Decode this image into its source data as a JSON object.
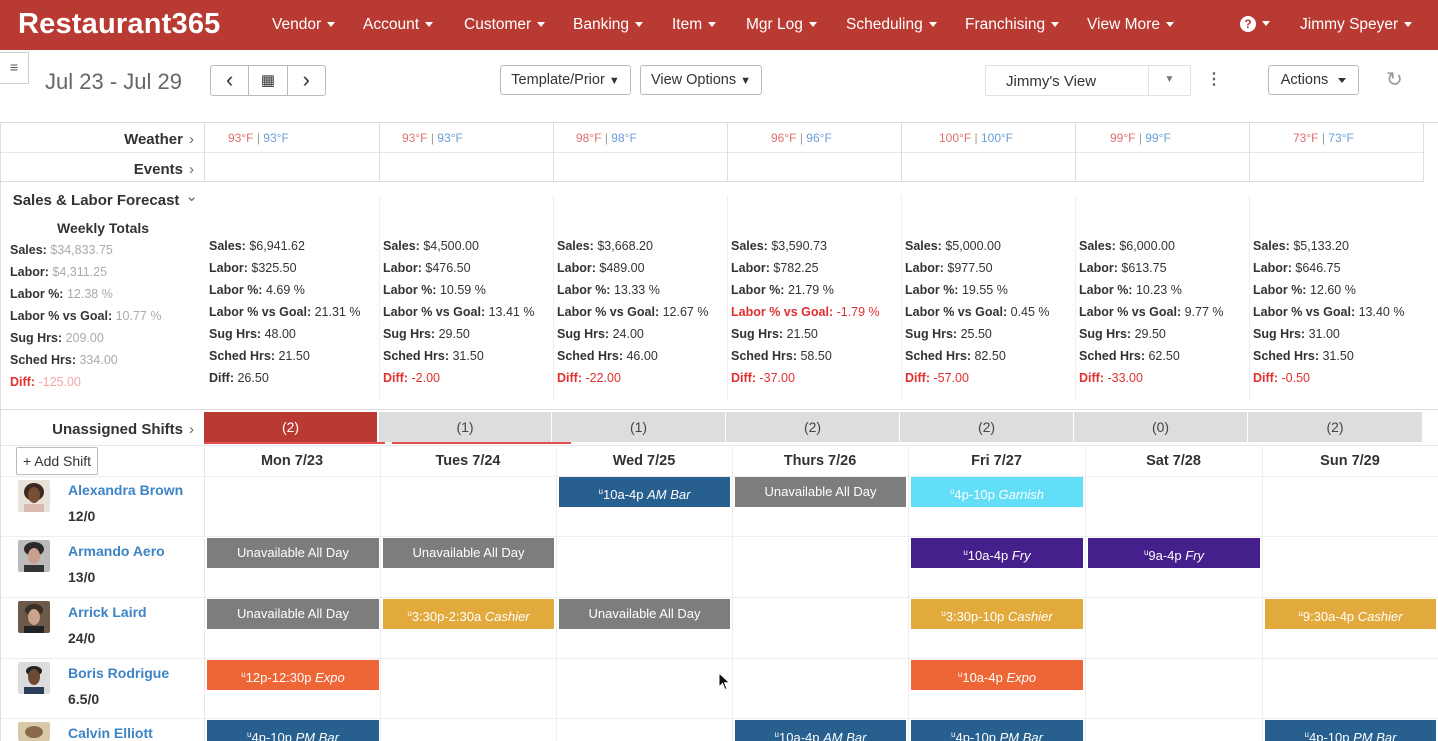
{
  "nav": {
    "brand": "Restaurant365",
    "items": [
      "Vendor",
      "Account",
      "Customer",
      "Banking",
      "Item",
      "Mgr Log",
      "Scheduling",
      "Franchising",
      "View More"
    ],
    "help_glyph": "?",
    "user": "Jimmy Speyer"
  },
  "toolbar": {
    "menu_glyph": "≡",
    "date_range": "Jul 23 - Jul 29",
    "prev_glyph": "‹",
    "calendar_glyph": "▦",
    "next_glyph": "›",
    "template_label": "Template/Prior",
    "view_options_label": "View Options",
    "view_select_value": "Jimmy's View",
    "kebab_glyph": "⋮",
    "actions_label": "Actions",
    "refresh_glyph": "↻"
  },
  "labels": {
    "weather": "Weather",
    "events": "Events",
    "forecast": "Sales & Labor Forecast",
    "unassigned": "Unassigned Shifts",
    "chevron_right": "›",
    "chevron_down": "⌄"
  },
  "weather": [
    {
      "hi": "93°F",
      "lo": "93°F"
    },
    {
      "hi": "93°F",
      "lo": "93°F"
    },
    {
      "hi": "98°F",
      "lo": "98°F"
    },
    {
      "hi": "96°F",
      "lo": "96°F"
    },
    {
      "hi": "100°F",
      "lo": "100°F"
    },
    {
      "hi": "99°F",
      "lo": "99°F"
    },
    {
      "hi": "73°F",
      "lo": "73°F"
    }
  ],
  "weekly_totals": {
    "title": "Weekly Totals",
    "rows": [
      {
        "label": "Sales:",
        "value": "$34,833.75"
      },
      {
        "label": "Labor:",
        "value": "$4,311.25"
      },
      {
        "label": "Labor %:",
        "value": "12.38 %"
      },
      {
        "label": "Labor % vs Goal:",
        "value": "10.77 %"
      },
      {
        "label": "Sug Hrs:",
        "value": "209.00"
      },
      {
        "label": "Sched Hrs:",
        "value": "334.00"
      },
      {
        "label": "Diff:",
        "value": "-125.00"
      }
    ]
  },
  "stat_labels": [
    "Sales:",
    "Labor:",
    "Labor %:",
    "Labor % vs Goal:",
    "Sug Hrs:",
    "Sched Hrs:",
    "Diff:"
  ],
  "days": [
    {
      "header": "Mon 7/23",
      "unassigned": "(2)",
      "stats": [
        "$6,941.62",
        "$325.50",
        "4.69 %",
        "21.31 %",
        "48.00",
        "21.50",
        "26.50"
      ]
    },
    {
      "header": "Tues 7/24",
      "unassigned": "(1)",
      "stats": [
        "$4,500.00",
        "$476.50",
        "10.59 %",
        "13.41 %",
        "29.50",
        "31.50",
        "-2.00"
      ]
    },
    {
      "header": "Wed 7/25",
      "unassigned": "(1)",
      "stats": [
        "$3,668.20",
        "$489.00",
        "13.33 %",
        "12.67 %",
        "24.00",
        "46.00",
        "-22.00"
      ]
    },
    {
      "header": "Thurs 7/26",
      "unassigned": "(2)",
      "stats": [
        "$3,590.73",
        "$782.25",
        "21.79 %",
        "-1.79 %",
        "21.50",
        "58.50",
        "-37.00"
      ]
    },
    {
      "header": "Fri 7/27",
      "unassigned": "(2)",
      "stats": [
        "$5,000.00",
        "$977.50",
        "19.55 %",
        "0.45 %",
        "25.50",
        "82.50",
        "-57.00"
      ]
    },
    {
      "header": "Sat 7/28",
      "unassigned": "(0)",
      "stats": [
        "$6,000.00",
        "$613.75",
        "10.23 %",
        "9.77 %",
        "29.50",
        "62.50",
        "-33.00"
      ]
    },
    {
      "header": "Sun 7/29",
      "unassigned": "(2)",
      "stats": [
        "$5,133.20",
        "$646.75",
        "12.60 %",
        "13.40 %",
        "31.00",
        "31.50",
        "-0.50"
      ]
    }
  ],
  "add_shift_label": "+ Add Shift",
  "employees": [
    {
      "name": "Alexandra Brown",
      "hours": "12/0"
    },
    {
      "name": "Armando Aero",
      "hours": "13/0"
    },
    {
      "name": "Arrick Laird",
      "hours": "24/0"
    },
    {
      "name": "Boris Rodrigue",
      "hours": "6.5/0"
    },
    {
      "name": "Calvin Elliott",
      "hours": ""
    }
  ],
  "shift_marker": "u",
  "shifts": [
    {
      "time": "10a-4p",
      "role": "AM Bar",
      "text": ""
    },
    {
      "time": "",
      "role": "",
      "text": "Unavailable All Day"
    },
    {
      "time": "4p-10p",
      "role": "Garnish",
      "text": ""
    },
    {
      "time": "",
      "role": "",
      "text": "Unavailable All Day"
    },
    {
      "time": "",
      "role": "",
      "text": "Unavailable All Day"
    },
    {
      "time": "10a-4p",
      "role": "Fry",
      "text": ""
    },
    {
      "time": "9a-4p",
      "role": "Fry",
      "text": ""
    },
    {
      "time": "",
      "role": "",
      "text": "Unavailable All Day"
    },
    {
      "time": "3:30p-2:30a",
      "role": "Cashier",
      "text": ""
    },
    {
      "time": "",
      "role": "",
      "text": "Unavailable All Day"
    },
    {
      "time": "3:30p-10p",
      "role": "Cashier",
      "text": ""
    },
    {
      "time": "9:30a-4p",
      "role": "Cashier",
      "text": ""
    },
    {
      "time": "12p-12:30p",
      "role": "Expo",
      "text": ""
    },
    {
      "time": "10a-4p",
      "role": "Expo",
      "text": ""
    },
    {
      "time": "4p-10p",
      "role": "PM Bar",
      "text": ""
    },
    {
      "time": "10a-4p",
      "role": "AM Bar",
      "text": ""
    },
    {
      "time": "4p-10p",
      "role": "PM Bar",
      "text": ""
    },
    {
      "time": "4p-10p",
      "role": "PM Bar",
      "text": ""
    }
  ],
  "colors": {
    "brand_red": "#b93a32",
    "link_blue": "#3c84c4",
    "negative_red": "#e03030"
  }
}
